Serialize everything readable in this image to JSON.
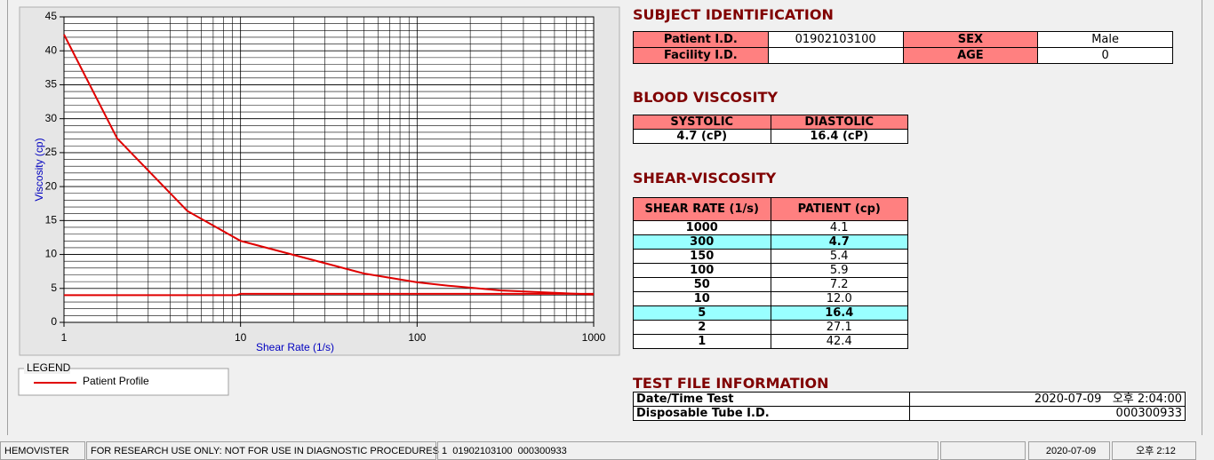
{
  "chart_data": {
    "type": "line",
    "xlabel": "Shear Rate (1/s)",
    "ylabel": "Viscosity (cp)",
    "xscale": "log",
    "xlim": [
      1,
      1000
    ],
    "xticks": [
      1,
      10,
      100,
      1000
    ],
    "ylim": [
      0,
      45
    ],
    "yticks": [
      0,
      5,
      10,
      15,
      20,
      25,
      30,
      35,
      40,
      45
    ],
    "grid": true,
    "legend_title": "LEGEND",
    "series": [
      {
        "name": "Patient Profile",
        "color": "#e00000",
        "x": [
          1,
          2,
          5,
          10,
          50,
          100,
          150,
          300,
          1000
        ],
        "values": [
          42.4,
          27.1,
          16.4,
          12.0,
          7.2,
          5.9,
          5.4,
          4.7,
          4.1
        ]
      },
      {
        "color": "#e00000",
        "x": [
          1,
          9.5,
          10,
          1000
        ],
        "values": [
          4.0,
          4.0,
          4.2,
          4.2
        ]
      }
    ]
  },
  "subject": {
    "title": "SUBJECT IDENTIFICATION",
    "patient_id": {
      "label": "Patient I.D.",
      "value": "01902103100"
    },
    "sex": {
      "label": "SEX",
      "value": "Male"
    },
    "facility_id": {
      "label": "Facility I.D."
    },
    "age": {
      "label": "AGE",
      "value": "0"
    }
  },
  "blood_viscosity": {
    "title": "BLOOD VISCOSITY",
    "headers": [
      "SYSTOLIC",
      "DIASTOLIC"
    ],
    "values": [
      "4.7 (cP)",
      "16.4 (cP)"
    ]
  },
  "shear_viscosity": {
    "title": "SHEAR-VISCOSITY",
    "headers": [
      "SHEAR RATE (1/s)",
      "PATIENT (cp)"
    ],
    "rows": [
      [
        1000,
        "4.1"
      ],
      [
        300,
        "4.7"
      ],
      [
        150,
        "5.4"
      ],
      [
        100,
        "5.9"
      ],
      [
        50,
        "7.2"
      ],
      [
        10,
        "12.0"
      ],
      [
        5,
        "16.4"
      ],
      [
        2,
        "27.1"
      ],
      [
        1,
        "42.4"
      ]
    ]
  },
  "test_file": {
    "title": "TEST FILE INFORMATION",
    "rows": [
      [
        "Date/Time Test",
        "2020-07-09   오후 2:04:00"
      ],
      [
        "Disposable Tube I.D.",
        "000300933"
      ]
    ]
  },
  "status_bar": [
    "HEMOVISTER",
    "FOR RESEARCH USE ONLY: NOT FOR USE IN DIAGNOSTIC PROCEDURES",
    "1  01902103100  000300933",
    "2020-07-09",
    "오후 2:12"
  ]
}
